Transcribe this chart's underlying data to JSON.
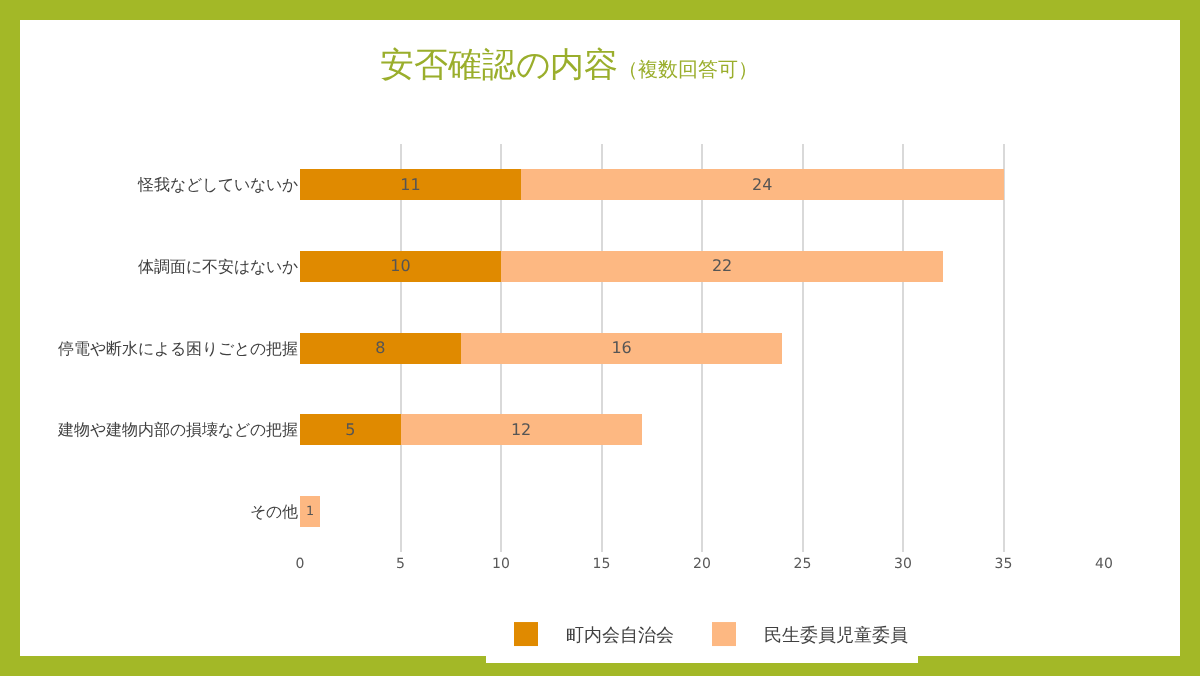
{
  "chart_data": {
    "type": "bar",
    "orientation": "horizontal",
    "stacked": true,
    "title": "安否確認の内容",
    "subtitle": "（複数回答可）",
    "categories": [
      "怪我などしていないか",
      "体調面に不安はないか",
      "停電や断水による困りごとの把握",
      "建物や建物内部の損壊などの把握",
      "その他"
    ],
    "series": [
      {
        "name": "町内会自治会",
        "color": "#e08a00",
        "values": [
          11,
          10,
          8,
          5,
          null
        ]
      },
      {
        "name": "民生委員児童委員",
        "color": "#fdb882",
        "values": [
          24,
          22,
          16,
          12,
          1
        ]
      }
    ],
    "xlim": [
      0,
      40
    ],
    "xticks": [
      0,
      5,
      10,
      15,
      20,
      25,
      30,
      35,
      40
    ],
    "grid": "x",
    "legend": "bottom",
    "data_labels": true
  }
}
